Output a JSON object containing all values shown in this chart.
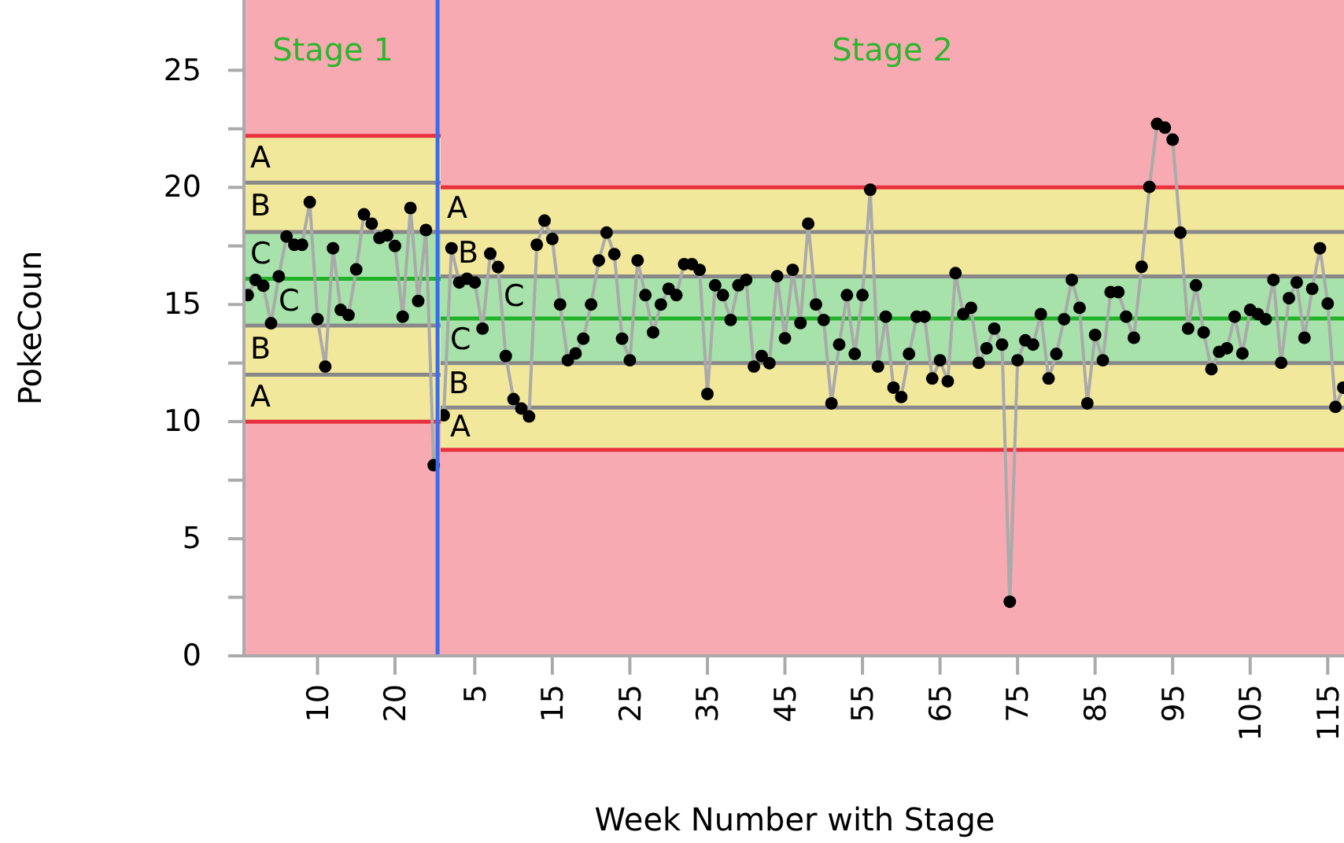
{
  "chart_data": [
    {
      "type": "line",
      "ylabel": "PokeCoun",
      "xlim": [
        0.5,
        25.9
      ],
      "ylim": [
        0,
        28
      ],
      "ref_lines": [
        {
          "axis": "x",
          "value": 25.5,
          "color": "#3a6cf0"
        }
      ],
      "xticks": [
        10,
        20
      ],
      "yticks": [
        0,
        {
          "value": 2.5,
          "label": null
        },
        5,
        {
          "value": 7.5,
          "label": null
        },
        10,
        {
          "value": 12.5,
          "label": null
        },
        15,
        {
          "value": 17.5,
          "label": null
        },
        20,
        {
          "value": 22.5,
          "label": null
        },
        25
      ],
      "grid": false,
      "bands": [
        {
          "axis": "y",
          "from": 0,
          "to": 28,
          "color": "#f8aab2"
        },
        {
          "axis": "y",
          "from": 20.2,
          "to": 22.2,
          "label": "A",
          "color": "#f2e89c"
        },
        {
          "axis": "y",
          "from": 18.1,
          "to": 20.2,
          "label": "B",
          "color": "#f2e89c"
        },
        {
          "axis": "y",
          "from": 16.1,
          "to": 18.1,
          "label": "C",
          "color": "#a6e2aa"
        },
        {
          "axis": "y",
          "from": 14.1,
          "to": 16.1,
          "label": "C",
          "color": "#a6e2aa"
        },
        {
          "axis": "y",
          "from": 12.0,
          "to": 14.1,
          "label": "B",
          "color": "#f2e89c"
        },
        {
          "axis": "y",
          "from": 10.0,
          "to": 12.0,
          "label": "A",
          "color": "#f2e89c"
        }
      ],
      "series": [
        {
          "color": "#888888",
          "x": [
            0.5,
            25.9
          ],
          "values": [
            20.2,
            20.2
          ]
        },
        {
          "color": "#888888",
          "x": [
            0.5,
            25.9
          ],
          "values": [
            18.1,
            18.1
          ]
        },
        {
          "color": "#888888",
          "x": [
            0.5,
            25.9
          ],
          "values": [
            14.1,
            14.1
          ]
        },
        {
          "color": "#888888",
          "x": [
            0.5,
            25.9
          ],
          "values": [
            12.0,
            12.0
          ]
        },
        {
          "color": "#e8303f",
          "x": [
            0.5,
            25.9
          ],
          "values": [
            22.2,
            22.2
          ]
        },
        {
          "color": "#e8303f",
          "x": [
            0.5,
            25.9
          ],
          "values": [
            10.0,
            10.0
          ]
        },
        {
          "color": "#22b22a",
          "x": [
            0.5,
            25.9
          ],
          "values": [
            16.1,
            16.1
          ]
        },
        {
          "color": "#aaaaaa",
          "marker": "none",
          "x": [
            1,
            2,
            3,
            4,
            5,
            6,
            7,
            8,
            9,
            10,
            11,
            12,
            13,
            14,
            15,
            16,
            17,
            18,
            19,
            20,
            21,
            22,
            23,
            24,
            25
          ],
          "values": [
            15.4,
            16.05,
            15.8,
            14.2,
            16.2,
            17.9,
            17.55,
            17.55,
            19.37,
            14.37,
            12.35,
            17.4,
            14.77,
            14.55,
            16.5,
            18.85,
            18.45,
            17.84,
            17.95,
            17.5,
            14.48,
            19.12,
            15.15,
            18.18,
            8.14
          ]
        },
        {
          "type": "scatter",
          "color": "#000000",
          "marker": "circle",
          "x": [
            1,
            2,
            3,
            4,
            5,
            6,
            7,
            8,
            9,
            10,
            11,
            12,
            13,
            14,
            15,
            16,
            17,
            18,
            19,
            20,
            21,
            22,
            23,
            24,
            25
          ],
          "values": [
            15.4,
            16.05,
            15.8,
            14.2,
            16.2,
            17.9,
            17.55,
            17.55,
            19.37,
            14.37,
            12.35,
            17.4,
            14.77,
            14.55,
            16.5,
            18.85,
            18.45,
            17.84,
            17.95,
            17.5,
            14.48,
            19.12,
            15.15,
            18.18,
            8.14
          ]
        }
      ],
      "annotations": [
        "Stage 1"
      ]
    },
    {
      "type": "line",
      "xlabel": "Week Number with Stage",
      "xlim": [
        0.6,
        117.1
      ],
      "ylim": [
        0,
        28
      ],
      "tick_labels": "x",
      "xticks": [
        5,
        15,
        25,
        35,
        45,
        55,
        65,
        75,
        85,
        95,
        105,
        115
      ],
      "grid": false,
      "bands": [
        {
          "axis": "y",
          "from": 0,
          "to": 28,
          "color": "#f8aab2"
        },
        {
          "axis": "y",
          "from": 18.1,
          "to": 20.0,
          "label": "A",
          "color": "#f2e89c"
        },
        {
          "axis": "y",
          "from": 16.2,
          "to": 18.1,
          "label": "B",
          "color": "#f2e89c"
        },
        {
          "axis": "y",
          "from": 14.4,
          "to": 16.2,
          "label": "C",
          "color": "#a6e2aa"
        },
        {
          "axis": "y",
          "from": 12.5,
          "to": 14.4,
          "label": "C",
          "color": "#a6e2aa"
        },
        {
          "axis": "y",
          "from": 10.6,
          "to": 12.5,
          "label": "B",
          "color": "#f2e89c"
        },
        {
          "axis": "y",
          "from": 8.8,
          "to": 10.6,
          "label": "A",
          "color": "#f2e89c"
        }
      ],
      "series": [
        {
          "color": "#888888",
          "x": [
            0.6,
            117.1
          ],
          "values": [
            18.1,
            18.1
          ]
        },
        {
          "color": "#888888",
          "x": [
            0.6,
            117.1
          ],
          "values": [
            16.2,
            16.2
          ]
        },
        {
          "color": "#888888",
          "x": [
            0.6,
            117.1
          ],
          "values": [
            12.5,
            12.5
          ]
        },
        {
          "color": "#888888",
          "x": [
            0.6,
            117.1
          ],
          "values": [
            10.6,
            10.6
          ]
        },
        {
          "color": "#e8303f",
          "x": [
            0.6,
            117.1
          ],
          "values": [
            20.0,
            20.0
          ]
        },
        {
          "color": "#e8303f",
          "x": [
            0.6,
            117.1
          ],
          "values": [
            8.8,
            8.8
          ]
        },
        {
          "color": "#22b22a",
          "x": [
            0.6,
            117.1
          ],
          "values": [
            14.4,
            14.4
          ]
        },
        {
          "color": "#aaaaaa",
          "marker": "none",
          "x": [
            1,
            2,
            3,
            4,
            5,
            6,
            7,
            8,
            9,
            10,
            11,
            12,
            13,
            14,
            15,
            16,
            17,
            18,
            19,
            20,
            21,
            22,
            23,
            24,
            25,
            26,
            27,
            28,
            29,
            30,
            31,
            32,
            33,
            34,
            35,
            36,
            37,
            38,
            39,
            40,
            41,
            42,
            43,
            44,
            45,
            46,
            47,
            48,
            49,
            50,
            51,
            52,
            53,
            54,
            55,
            56,
            57,
            58,
            59,
            60,
            61,
            62,
            63,
            64,
            65,
            66,
            67,
            68,
            69,
            70,
            71,
            72,
            73,
            74,
            75,
            76,
            77,
            78,
            79,
            80,
            81,
            82,
            83,
            84,
            85,
            86,
            87,
            88,
            89,
            90,
            91,
            92,
            93,
            94,
            95,
            96,
            97,
            98,
            99,
            100,
            101,
            102,
            103,
            104,
            105,
            106,
            107,
            108,
            109,
            110,
            111,
            112,
            113,
            114,
            115,
            116,
            117
          ],
          "values": [
            10.27,
            17.4,
            15.94,
            16.1,
            15.94,
            13.97,
            17.17,
            16.6,
            12.8,
            10.96,
            10.56,
            10.22,
            17.55,
            18.58,
            17.8,
            15.0,
            12.62,
            12.91,
            13.54,
            15.0,
            16.88,
            18.07,
            17.15,
            13.54,
            12.62,
            16.88,
            15.4,
            13.81,
            15.0,
            15.67,
            15.4,
            16.72,
            16.72,
            16.48,
            11.18,
            15.82,
            15.4,
            14.34,
            15.82,
            16.05,
            12.35,
            12.8,
            12.49,
            16.21,
            13.56,
            16.48,
            14.21,
            18.45,
            15.0,
            14.34,
            10.78,
            13.29,
            15.4,
            12.89,
            15.4,
            19.9,
            12.35,
            14.48,
            11.45,
            11.05,
            12.89,
            14.48,
            14.48,
            11.84,
            12.62,
            11.72,
            16.34,
            14.59,
            14.86,
            12.51,
            13.13,
            13.97,
            13.29,
            2.31,
            12.62,
            13.47,
            13.29,
            14.59,
            11.84,
            12.89,
            14.37,
            16.05,
            14.86,
            10.78,
            13.7,
            12.62,
            15.53,
            15.53,
            14.48,
            13.58,
            16.61,
            20.02,
            22.71,
            22.55,
            22.04,
            18.07,
            13.97,
            15.82,
            13.81,
            12.24,
            12.98,
            13.13,
            14.48,
            12.91,
            14.77,
            14.59,
            14.37,
            16.05,
            12.51,
            15.27,
            15.94,
            13.58,
            15.67,
            17.4,
            15.04,
            10.63,
            11.45
          ]
        },
        {
          "type": "scatter",
          "color": "#000000",
          "marker": "circle",
          "x": [
            1,
            2,
            3,
            4,
            5,
            6,
            7,
            8,
            9,
            10,
            11,
            12,
            13,
            14,
            15,
            16,
            17,
            18,
            19,
            20,
            21,
            22,
            23,
            24,
            25,
            26,
            27,
            28,
            29,
            30,
            31,
            32,
            33,
            34,
            35,
            36,
            37,
            38,
            39,
            40,
            41,
            42,
            43,
            44,
            45,
            46,
            47,
            48,
            49,
            50,
            51,
            52,
            53,
            54,
            55,
            56,
            57,
            58,
            59,
            60,
            61,
            62,
            63,
            64,
            65,
            66,
            67,
            68,
            69,
            70,
            71,
            72,
            73,
            74,
            75,
            76,
            77,
            78,
            79,
            80,
            81,
            82,
            83,
            84,
            85,
            86,
            87,
            88,
            89,
            90,
            91,
            92,
            93,
            94,
            95,
            96,
            97,
            98,
            99,
            100,
            101,
            102,
            103,
            104,
            105,
            106,
            107,
            108,
            109,
            110,
            111,
            112,
            113,
            114,
            115,
            116,
            117
          ],
          "values": [
            10.27,
            17.4,
            15.94,
            16.1,
            15.94,
            13.97,
            17.17,
            16.6,
            12.8,
            10.96,
            10.56,
            10.22,
            17.55,
            18.58,
            17.8,
            15.0,
            12.62,
            12.91,
            13.54,
            15.0,
            16.88,
            18.07,
            17.15,
            13.54,
            12.62,
            16.88,
            15.4,
            13.81,
            15.0,
            15.67,
            15.4,
            16.72,
            16.72,
            16.48,
            11.18,
            15.82,
            15.4,
            14.34,
            15.82,
            16.05,
            12.35,
            12.8,
            12.49,
            16.21,
            13.56,
            16.48,
            14.21,
            18.45,
            15.0,
            14.34,
            10.78,
            13.29,
            15.4,
            12.89,
            15.4,
            19.9,
            12.35,
            14.48,
            11.45,
            11.05,
            12.89,
            14.48,
            14.48,
            11.84,
            12.62,
            11.72,
            16.34,
            14.59,
            14.86,
            12.51,
            13.13,
            13.97,
            13.29,
            2.31,
            12.62,
            13.47,
            13.29,
            14.59,
            11.84,
            12.89,
            14.37,
            16.05,
            14.86,
            10.78,
            13.7,
            12.62,
            15.53,
            15.53,
            14.48,
            13.58,
            16.61,
            20.02,
            22.71,
            22.55,
            22.04,
            18.07,
            13.97,
            15.82,
            13.81,
            12.24,
            12.98,
            13.13,
            14.48,
            12.91,
            14.77,
            14.59,
            14.37,
            16.05,
            12.51,
            15.27,
            15.94,
            13.58,
            15.67,
            17.4,
            15.04,
            10.63,
            11.45
          ]
        }
      ],
      "annotations": [
        "Stage 2"
      ]
    }
  ]
}
